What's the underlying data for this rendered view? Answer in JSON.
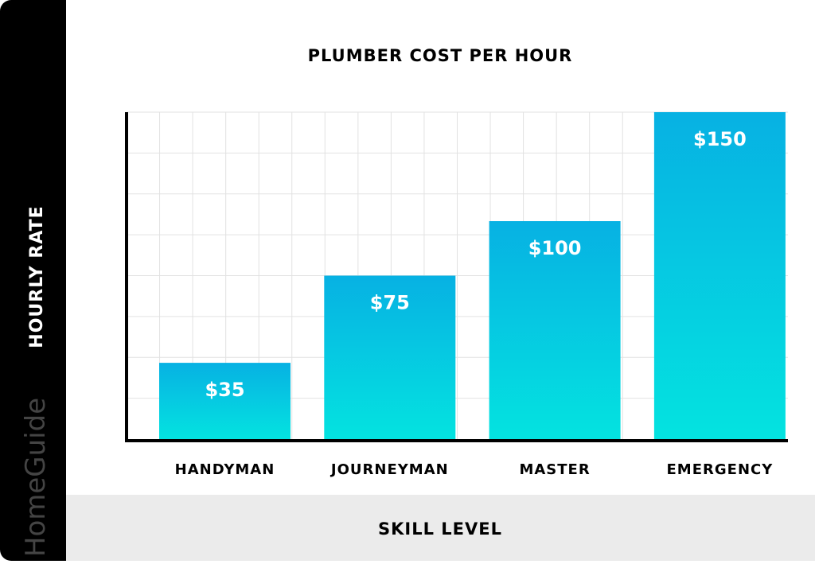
{
  "branding": {
    "logo_text": "HomeGuide"
  },
  "chart_data": {
    "type": "bar",
    "title": "PLUMBER COST PER HOUR",
    "xlabel": "SKILL LEVEL",
    "ylabel": "HOURLY RATE",
    "categories": [
      "HANDYMAN",
      "JOURNEYMAN",
      "MASTER",
      "EMERGENCY"
    ],
    "values": [
      35,
      75,
      100,
      150
    ],
    "data_labels": [
      "$35",
      "$75",
      "$100",
      "$150"
    ],
    "ylim": [
      0,
      150
    ],
    "grid": true,
    "colors": {
      "bar_top": "#07b1e3",
      "bar_bottom": "#04e3e0",
      "label": "#ffffff",
      "sidebar": "#000000",
      "footer": "#ebebeb"
    }
  }
}
